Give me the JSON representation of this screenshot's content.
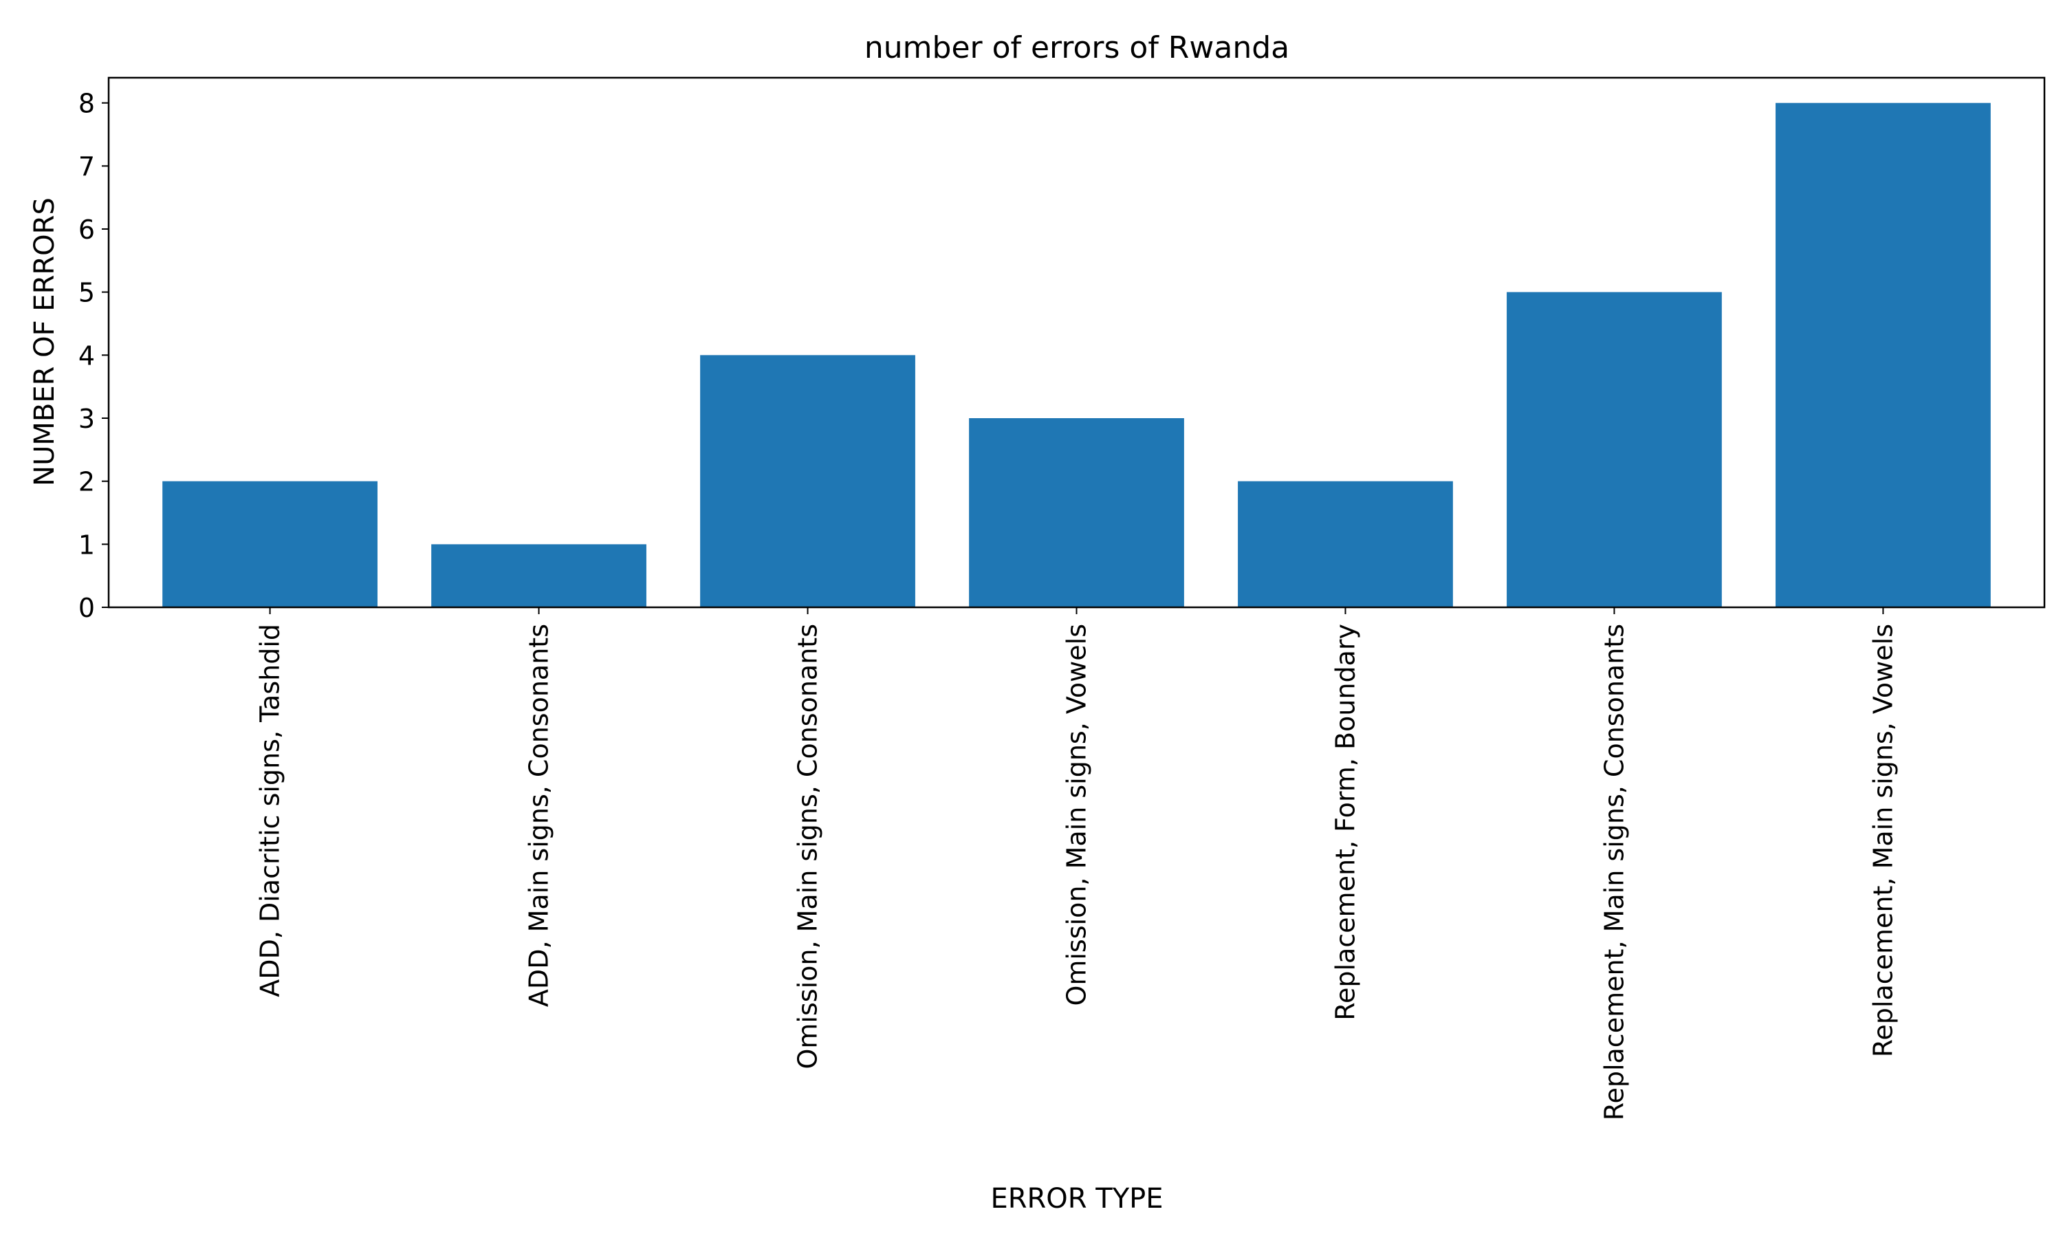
{
  "chart_data": {
    "type": "bar",
    "title": "number of errors of Rwanda",
    "xlabel": "ERROR TYPE",
    "ylabel": "NUMBER OF ERRORS",
    "categories": [
      "ADD, Diacritic signs, Tashdid",
      "ADD, Main signs, Consonants",
      "Omission, Main signs, Consonants",
      "Omission, Main signs, Vowels",
      "Replacement, Form, Boundary",
      "Replacement, Main signs, Consonants",
      "Replacement, Main signs, Vowels"
    ],
    "values": [
      2,
      1,
      4,
      3,
      2,
      5,
      8
    ],
    "ylim": [
      0,
      8.4
    ],
    "yticks": [
      0,
      1,
      2,
      3,
      4,
      5,
      6,
      7,
      8
    ],
    "bar_color": "#1f77b4",
    "grid": false,
    "legend": "none"
  }
}
